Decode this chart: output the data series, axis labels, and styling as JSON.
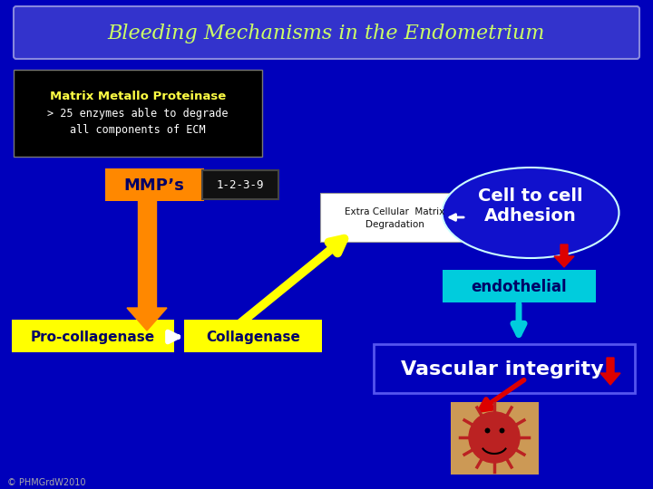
{
  "bg_color": "#0000BB",
  "title": "Bleeding Mechanisms in the Endometrium",
  "title_color": "#CCFF66",
  "title_box_facecolor": "#3333CC",
  "title_box_edgecolor": "#8888DD",
  "box_mmp_title": "Matrix Metallo Proteinase",
  "box_mmp_line1": "> 25 enzymes able to degrade",
  "box_mmp_line2": "all components of ECM",
  "mmp_label": "MMP’s",
  "numbers_label": "1-2-3-9",
  "extra_cellular_label": "Extra Cellular  Matrix\nDegradation",
  "cell_adhesion_label": "Cell to cell\nAdhesion",
  "endothelial_label": "endothelial",
  "pro_coll_label": "Pro-collagenase",
  "coll_label": "Collagenase",
  "vascular_label": "Vascular integrity",
  "copyright": "© PHMGrdW2010",
  "orange": "#FF8800",
  "yellow": "#FFFF00",
  "cyan": "#00CCDD",
  "white": "#FFFFFF",
  "red": "#DD0000",
  "dark_blue_text": "#000066",
  "ellipse_edge": "#CCFFFF",
  "ellipse_face": "#1111CC"
}
